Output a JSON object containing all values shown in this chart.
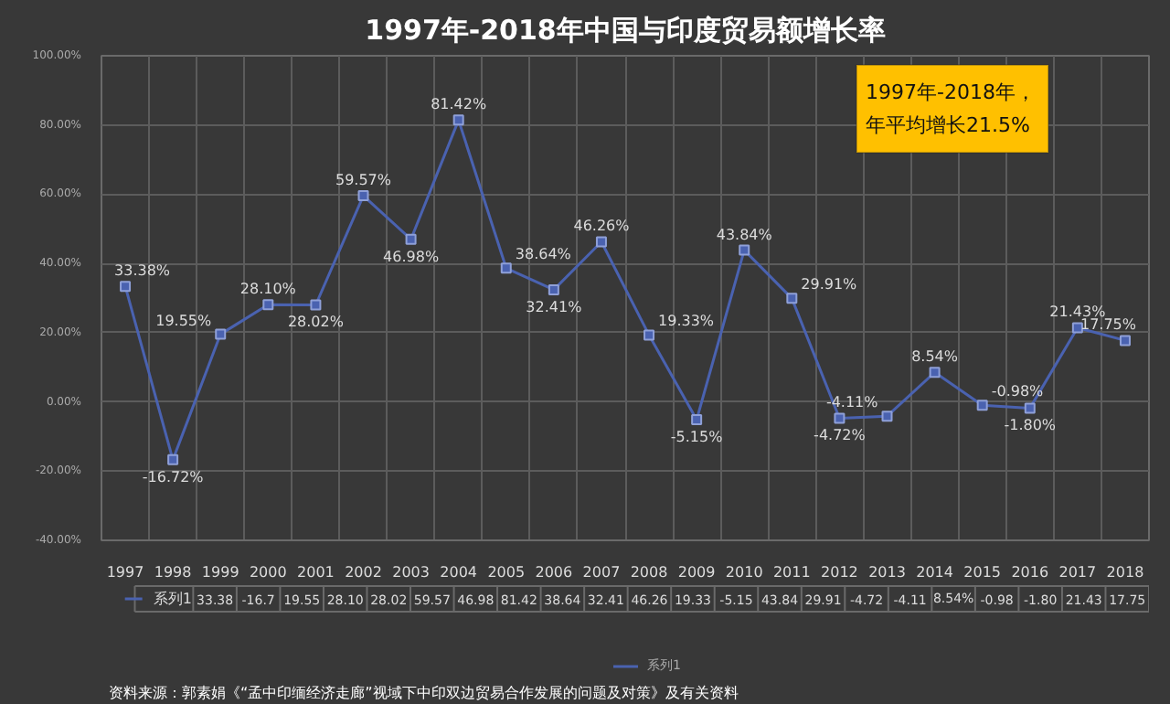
{
  "chart_data": [
    {
      "type": "line",
      "title": "1997年-2018年中国与印度贸易额增长率",
      "categories": [
        "1997",
        "1998",
        "1999",
        "2000",
        "2001",
        "2002",
        "2003",
        "2004",
        "2005",
        "2006",
        "2007",
        "2008",
        "2009",
        "2010",
        "2011",
        "2012",
        "2013",
        "2014",
        "2015",
        "2016",
        "2017",
        "2018"
      ],
      "series": [
        {
          "name": "系列1",
          "color": "#4a62b0",
          "values": [
            33.38,
            -16.72,
            19.55,
            28.1,
            28.02,
            59.57,
            46.98,
            81.42,
            38.64,
            32.41,
            46.26,
            19.33,
            -5.15,
            43.84,
            29.91,
            -4.72,
            -4.11,
            8.54,
            -0.98,
            -1.8,
            21.43,
            17.75
          ],
          "value_labels": [
            "33.38%",
            "-16.72%",
            "19.55%",
            "28.10%",
            "28.02%",
            "59.57%",
            "46.98%",
            "81.42%",
            "38.64%",
            "32.41%",
            "46.26%",
            "19.33%",
            "-5.15%",
            "43.84%",
            "29.91%",
            "-4.72%",
            "-4.11%",
            "8.54%",
            "-0.98%",
            "-1.80%",
            "21.43%",
            "17.75%"
          ]
        }
      ],
      "ylim": [
        -40,
        100
      ],
      "yticks": [
        {
          "value": -40,
          "label": "-40.00%"
        },
        {
          "value": -20,
          "label": "-20.00%"
        },
        {
          "value": 0,
          "label": "0.00%"
        },
        {
          "value": 20,
          "label": "20.00%"
        },
        {
          "value": 40,
          "label": "40.00%"
        },
        {
          "value": 60,
          "label": "60.00%"
        },
        {
          "value": 80,
          "label": "80.00%"
        },
        {
          "value": 100,
          "label": "100.00%"
        }
      ],
      "grid": true,
      "legend": "bottom",
      "marker": "square",
      "line_style": "solid",
      "data_labels": true,
      "annotations": [
        "1997年-2018年，",
        "年平均增长21.5%",
        "资料来源：郭素娟《“孟中印缅经济走廊”视域下中印双边贸易合作发展的问题及对策》及有关资料"
      ]
    },
    {
      "type": "other",
      "annotations": [
        "33.38",
        "-16.7",
        "19.55",
        "28.10",
        "28.02",
        "59.57",
        "46.98",
        "81.42",
        "38.64",
        "32.41",
        "46.26",
        "19.33",
        "-5.15",
        "43.84",
        "29.91",
        "-4.72",
        "-4.11",
        "8.54%",
        "-0.98",
        "-1.80",
        "21.43",
        "17.75"
      ]
    }
  ]
}
